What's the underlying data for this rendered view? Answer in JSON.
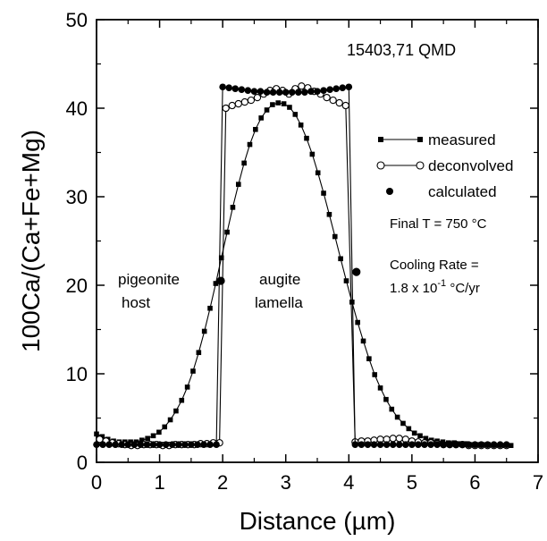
{
  "chart_data": {
    "type": "scatter",
    "title": "15403,71 QMD",
    "xlabel": "Distance (µm)",
    "ylabel": "100Ca/(Ca+Fe+Mg)",
    "xlim": [
      0,
      7
    ],
    "ylim": [
      0,
      50
    ],
    "x_ticks": [
      "0",
      "1",
      "2",
      "3",
      "4",
      "5",
      "6",
      "7"
    ],
    "y_ticks": [
      "0",
      "10",
      "20",
      "30",
      "40",
      "50"
    ],
    "grid": false,
    "legend_position": "right",
    "legend": [
      "measured",
      "deconvolved",
      "calculated"
    ],
    "annotations": {
      "host_line1": "pigeonite",
      "host_line2": "host",
      "lamella_line1": "augite",
      "lamella_line2": "lamella",
      "final_t_prefix": "Final T = 750 ",
      "final_t_unit": "°C",
      "cooling_line1": "Cooling Rate =",
      "cooling_base": "1.8 x 10",
      "cooling_exp": "-1",
      "cooling_unit": " °C/yr"
    },
    "series": [
      {
        "name": "measured",
        "marker": "filled-square",
        "line": true,
        "x": [
          0.0,
          0.09,
          0.18,
          0.27,
          0.36,
          0.45,
          0.54,
          0.63,
          0.72,
          0.81,
          0.9,
          0.99,
          1.08,
          1.17,
          1.26,
          1.35,
          1.44,
          1.53,
          1.62,
          1.71,
          1.8,
          1.89,
          1.98,
          2.07,
          2.16,
          2.25,
          2.34,
          2.43,
          2.52,
          2.61,
          2.7,
          2.79,
          2.88,
          2.97,
          3.06,
          3.15,
          3.24,
          3.33,
          3.42,
          3.51,
          3.6,
          3.69,
          3.78,
          3.87,
          3.96,
          4.05,
          4.14,
          4.23,
          4.32,
          4.41,
          4.5,
          4.59,
          4.68,
          4.77,
          4.86,
          4.95,
          5.04,
          5.13,
          5.22,
          5.31,
          5.4,
          5.49,
          5.58,
          5.67,
          5.76,
          5.85,
          5.94,
          6.03,
          6.12,
          6.21,
          6.3,
          6.39,
          6.48,
          6.57
        ],
        "y": [
          3.2,
          2.9,
          2.6,
          2.4,
          2.3,
          2.3,
          2.3,
          2.3,
          2.5,
          2.7,
          3.0,
          3.4,
          4.0,
          4.8,
          5.8,
          7.0,
          8.5,
          10.3,
          12.4,
          14.8,
          17.4,
          20.2,
          23.1,
          26.0,
          28.8,
          31.4,
          33.8,
          35.9,
          37.6,
          38.9,
          39.8,
          40.4,
          40.6,
          40.5,
          40.1,
          39.3,
          38.1,
          36.6,
          34.8,
          32.7,
          30.4,
          28.0,
          25.5,
          23.0,
          20.5,
          18.1,
          15.8,
          13.7,
          11.7,
          9.9,
          8.4,
          7.1,
          6.0,
          5.1,
          4.4,
          3.8,
          3.3,
          3.0,
          2.7,
          2.5,
          2.4,
          2.3,
          2.2,
          2.2,
          2.1,
          2.1,
          2.0,
          2.0,
          2.0,
          2.0,
          2.0,
          1.9,
          1.9,
          1.9
        ]
      },
      {
        "name": "deconvolved",
        "marker": "open-circle",
        "line": true,
        "x": [
          0.05,
          0.15,
          0.25,
          0.35,
          0.45,
          0.55,
          0.65,
          0.75,
          0.85,
          0.95,
          1.05,
          1.15,
          1.25,
          1.35,
          1.45,
          1.55,
          1.65,
          1.75,
          1.85,
          1.95,
          2.05,
          2.15,
          2.25,
          2.35,
          2.45,
          2.55,
          2.65,
          2.75,
          2.85,
          2.95,
          3.05,
          3.15,
          3.25,
          3.35,
          3.45,
          3.55,
          3.65,
          3.75,
          3.85,
          3.95,
          4.1,
          4.2,
          4.3,
          4.4,
          4.5,
          4.6,
          4.7,
          4.8,
          4.9,
          5.0,
          5.1,
          5.2,
          5.3,
          5.4,
          5.5,
          5.6,
          5.7,
          5.8,
          5.9,
          6.0,
          6.1,
          6.2,
          6.3,
          6.4,
          6.5
        ],
        "y": [
          2.6,
          2.4,
          2.2,
          2.1,
          2.0,
          1.9,
          1.9,
          2.0,
          2.0,
          2.0,
          1.9,
          1.9,
          2.0,
          2.0,
          2.0,
          2.0,
          2.1,
          2.1,
          2.2,
          2.2,
          40.0,
          40.3,
          40.5,
          40.7,
          40.9,
          41.2,
          41.6,
          42.0,
          42.2,
          42.0,
          41.6,
          42.2,
          42.5,
          42.3,
          41.9,
          41.6,
          41.2,
          40.9,
          40.6,
          40.3,
          2.3,
          2.4,
          2.4,
          2.5,
          2.6,
          2.6,
          2.7,
          2.7,
          2.6,
          2.4,
          2.3,
          2.2,
          2.2,
          2.1,
          2.0,
          2.0,
          2.0,
          2.0,
          1.9,
          1.9,
          1.9,
          1.9,
          1.9,
          1.9,
          1.9
        ]
      },
      {
        "name": "calculated",
        "marker": "filled-circle",
        "line": true,
        "x": [
          0.0,
          0.1,
          0.2,
          0.3,
          0.4,
          0.5,
          0.6,
          0.7,
          0.8,
          0.9,
          1.0,
          1.1,
          1.2,
          1.3,
          1.4,
          1.5,
          1.6,
          1.7,
          1.8,
          1.9,
          2.0,
          2.1,
          2.2,
          2.3,
          2.4,
          2.5,
          2.6,
          2.7,
          2.8,
          2.9,
          3.0,
          3.1,
          3.2,
          3.3,
          3.4,
          3.5,
          3.6,
          3.7,
          3.8,
          3.9,
          4.0,
          4.1,
          4.2,
          4.3,
          4.4,
          4.5,
          4.6,
          4.7,
          4.8,
          4.9,
          5.0,
          5.1,
          5.2,
          5.3,
          5.4,
          5.5,
          5.6,
          5.7,
          5.8,
          5.9,
          6.0,
          6.1,
          6.2,
          6.3,
          6.4,
          6.5
        ],
        "y": [
          2.0,
          2.0,
          2.0,
          2.0,
          2.0,
          2.0,
          2.0,
          2.0,
          2.0,
          2.0,
          2.0,
          2.0,
          2.0,
          2.0,
          2.0,
          2.0,
          2.0,
          2.0,
          2.0,
          2.0,
          42.4,
          42.3,
          42.2,
          42.1,
          42.0,
          41.9,
          41.9,
          41.8,
          41.8,
          41.8,
          41.8,
          41.8,
          41.8,
          41.8,
          41.9,
          41.9,
          42.0,
          42.1,
          42.2,
          42.3,
          42.4,
          2.0,
          2.0,
          2.0,
          2.0,
          2.0,
          2.0,
          2.0,
          2.0,
          2.0,
          2.0,
          2.0,
          2.0,
          2.0,
          2.0,
          2.0,
          2.0,
          2.0,
          2.0,
          2.0,
          2.0,
          2.0,
          2.0,
          2.0,
          2.0,
          2.0
        ]
      }
    ],
    "boundary_points": [
      {
        "x": 1.97,
        "y": 20.5
      },
      {
        "x": 4.12,
        "y": 21.5
      }
    ]
  }
}
